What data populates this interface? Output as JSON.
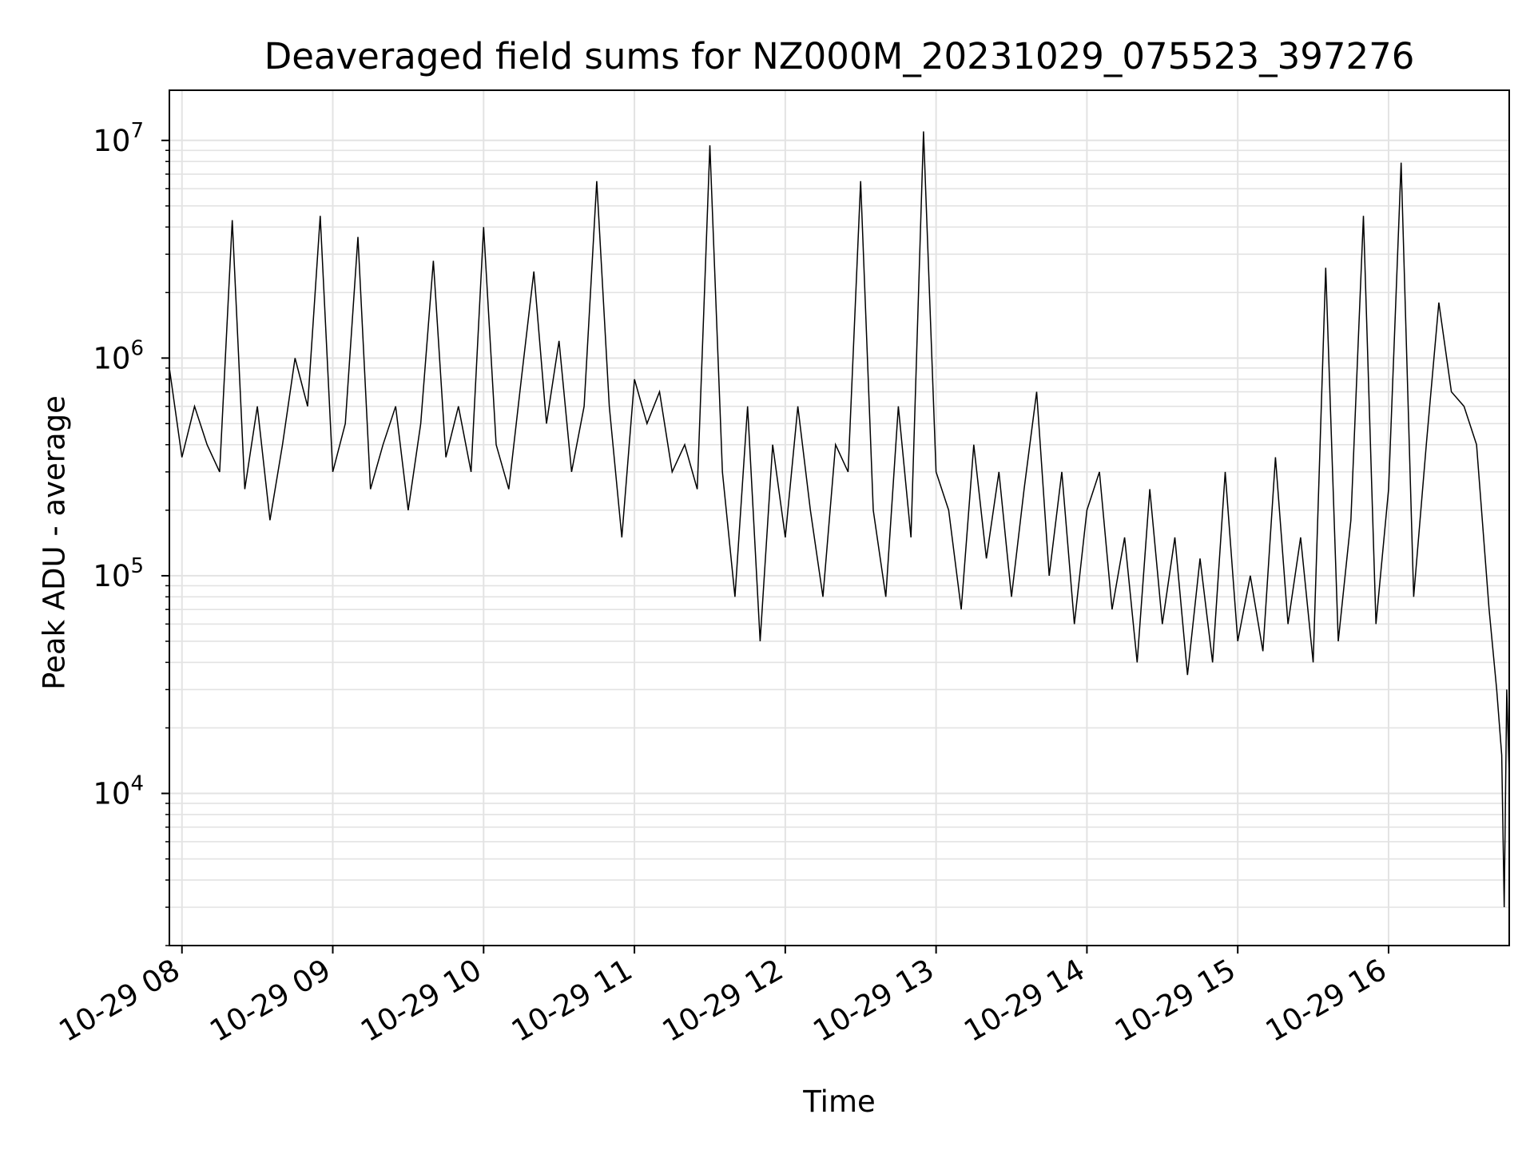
{
  "chart_data": {
    "type": "line",
    "title": "Deaveraged field sums for NZ000M_20231029_075523_397276",
    "xlabel": "Time",
    "ylabel": "Peak ADU - average",
    "x_range": [
      "2023-10-29 07:55",
      "2023-10-29 16:48"
    ],
    "ylim": [
      2000,
      17000000
    ],
    "y_scale": "log",
    "grid": true,
    "legend": "none",
    "line_color": "#000000",
    "x_ticks": [
      "10-29 08",
      "10-29 09",
      "10-29 10",
      "10-29 11",
      "10-29 12",
      "10-29 13",
      "10-29 14",
      "10-29 15",
      "10-29 16"
    ],
    "y_ticks": [
      {
        "value": 10000,
        "base": "10",
        "exp": "4"
      },
      {
        "value": 100000,
        "base": "10",
        "exp": "5"
      },
      {
        "value": 1000000,
        "base": "10",
        "exp": "6"
      },
      {
        "value": 10000000,
        "base": "10",
        "exp": "7"
      }
    ],
    "series": [
      {
        "x": [
          "2023-10-29 07:55",
          "2023-10-29 08:00",
          "2023-10-29 08:05",
          "2023-10-29 08:10",
          "2023-10-29 08:15",
          "2023-10-29 08:20",
          "2023-10-29 08:25",
          "2023-10-29 08:30",
          "2023-10-29 08:35",
          "2023-10-29 08:40",
          "2023-10-29 08:45",
          "2023-10-29 08:50",
          "2023-10-29 08:55",
          "2023-10-29 09:00",
          "2023-10-29 09:05",
          "2023-10-29 09:10",
          "2023-10-29 09:15",
          "2023-10-29 09:20",
          "2023-10-29 09:25",
          "2023-10-29 09:30",
          "2023-10-29 09:35",
          "2023-10-29 09:40",
          "2023-10-29 09:45",
          "2023-10-29 09:50",
          "2023-10-29 09:55",
          "2023-10-29 10:00",
          "2023-10-29 10:05",
          "2023-10-29 10:10",
          "2023-10-29 10:15",
          "2023-10-29 10:20",
          "2023-10-29 10:25",
          "2023-10-29 10:30",
          "2023-10-29 10:35",
          "2023-10-29 10:40",
          "2023-10-29 10:45",
          "2023-10-29 10:50",
          "2023-10-29 10:55",
          "2023-10-29 11:00",
          "2023-10-29 11:05",
          "2023-10-29 11:10",
          "2023-10-29 11:15",
          "2023-10-29 11:20",
          "2023-10-29 11:25",
          "2023-10-29 11:30",
          "2023-10-29 11:35",
          "2023-10-29 11:40",
          "2023-10-29 11:45",
          "2023-10-29 11:50",
          "2023-10-29 11:55",
          "2023-10-29 12:00",
          "2023-10-29 12:05",
          "2023-10-29 12:10",
          "2023-10-29 12:15",
          "2023-10-29 12:20",
          "2023-10-29 12:25",
          "2023-10-29 12:30",
          "2023-10-29 12:35",
          "2023-10-29 12:40",
          "2023-10-29 12:45",
          "2023-10-29 12:50",
          "2023-10-29 12:55",
          "2023-10-29 13:00",
          "2023-10-29 13:05",
          "2023-10-29 13:10",
          "2023-10-29 13:15",
          "2023-10-29 13:20",
          "2023-10-29 13:25",
          "2023-10-29 13:30",
          "2023-10-29 13:35",
          "2023-10-29 13:40",
          "2023-10-29 13:45",
          "2023-10-29 13:50",
          "2023-10-29 13:55",
          "2023-10-29 14:00",
          "2023-10-29 14:05",
          "2023-10-29 14:10",
          "2023-10-29 14:15",
          "2023-10-29 14:20",
          "2023-10-29 14:25",
          "2023-10-29 14:30",
          "2023-10-29 14:35",
          "2023-10-29 14:40",
          "2023-10-29 14:45",
          "2023-10-29 14:50",
          "2023-10-29 14:55",
          "2023-10-29 15:00",
          "2023-10-29 15:05",
          "2023-10-29 15:10",
          "2023-10-29 15:15",
          "2023-10-29 15:20",
          "2023-10-29 15:25",
          "2023-10-29 15:30",
          "2023-10-29 15:35",
          "2023-10-29 15:40",
          "2023-10-29 15:45",
          "2023-10-29 15:50",
          "2023-10-29 15:55",
          "2023-10-29 16:00",
          "2023-10-29 16:05",
          "2023-10-29 16:10",
          "2023-10-29 16:15",
          "2023-10-29 16:20",
          "2023-10-29 16:25",
          "2023-10-29 16:30",
          "2023-10-29 16:35",
          "2023-10-29 16:40",
          "2023-10-29 16:43",
          "2023-10-29 16:45",
          "2023-10-29 16:46",
          "2023-10-29 16:47",
          "2023-10-29 16:48"
        ],
        "y": [
          900000,
          350000,
          600000,
          400000,
          300000,
          4300000,
          250000,
          600000,
          180000,
          400000,
          1000000,
          600000,
          4500000,
          300000,
          500000,
          3600000,
          250000,
          400000,
          600000,
          200000,
          500000,
          2800000,
          350000,
          600000,
          300000,
          4000000,
          400000,
          250000,
          800000,
          2500000,
          500000,
          1200000,
          300000,
          600000,
          6500000,
          600000,
          150000,
          800000,
          500000,
          700000,
          300000,
          400000,
          250000,
          9500000,
          300000,
          80000,
          600000,
          50000,
          400000,
          150000,
          600000,
          200000,
          80000,
          400000,
          300000,
          6500000,
          200000,
          80000,
          600000,
          150000,
          11000000,
          300000,
          200000,
          70000,
          400000,
          120000,
          300000,
          80000,
          250000,
          700000,
          100000,
          300000,
          60000,
          200000,
          300000,
          70000,
          150000,
          40000,
          250000,
          60000,
          150000,
          35000,
          120000,
          40000,
          300000,
          50000,
          100000,
          45000,
          350000,
          60000,
          150000,
          40000,
          2600000,
          50000,
          180000,
          4500000,
          60000,
          250000,
          7900000,
          80000,
          400000,
          1800000,
          700000,
          600000,
          400000,
          70000,
          30000,
          15000,
          3000,
          30000,
          12000
        ]
      }
    ]
  }
}
